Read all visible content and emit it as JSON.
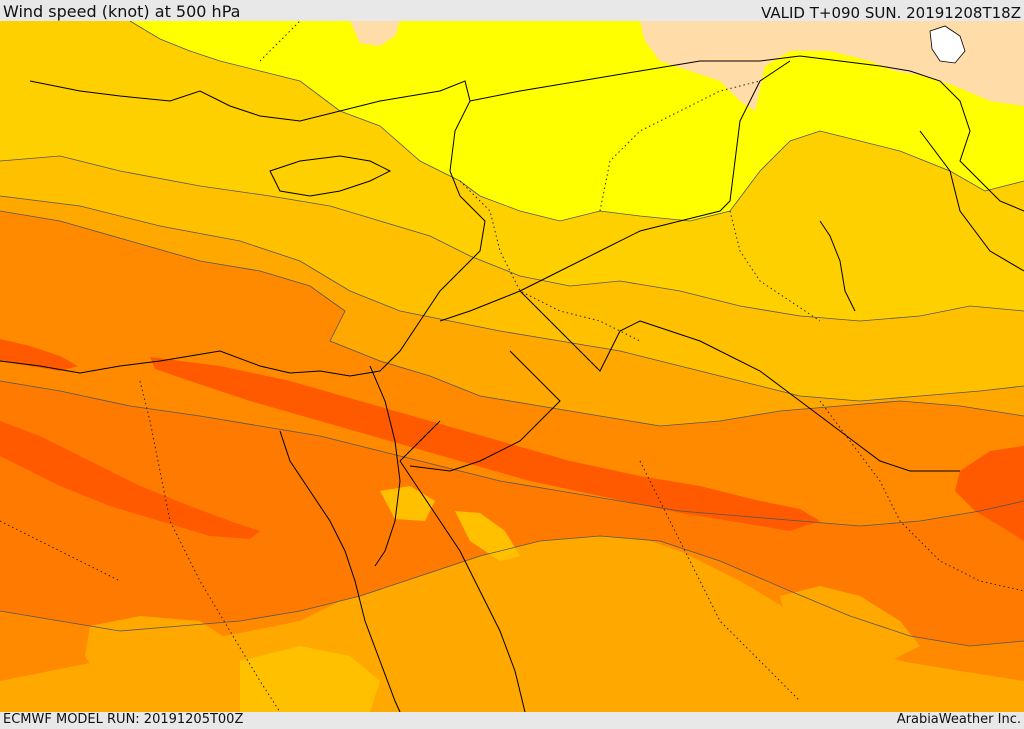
{
  "header": {
    "title": "Wind speed (knot) at 500 hPa",
    "valid": "VALID T+090 SUN. 20191208T18Z"
  },
  "footer": {
    "model_run": "ECMWF MODEL RUN: 20191205T00Z",
    "credit": "ArabiaWeather Inc."
  },
  "map": {
    "variable": "wind speed",
    "level": "500 hPa",
    "units": "knot",
    "palette": {
      "very_low": "#ffdca8",
      "low": "#ffff00",
      "low_mid": "#ffe000",
      "mid": "#ffc000",
      "mid_high": "#ffa800",
      "high": "#ff8a00",
      "higher": "#ff7a00",
      "max": "#ff5a00",
      "lakes": "#ffffff",
      "border": "#000000",
      "contour": "#555555"
    }
  }
}
